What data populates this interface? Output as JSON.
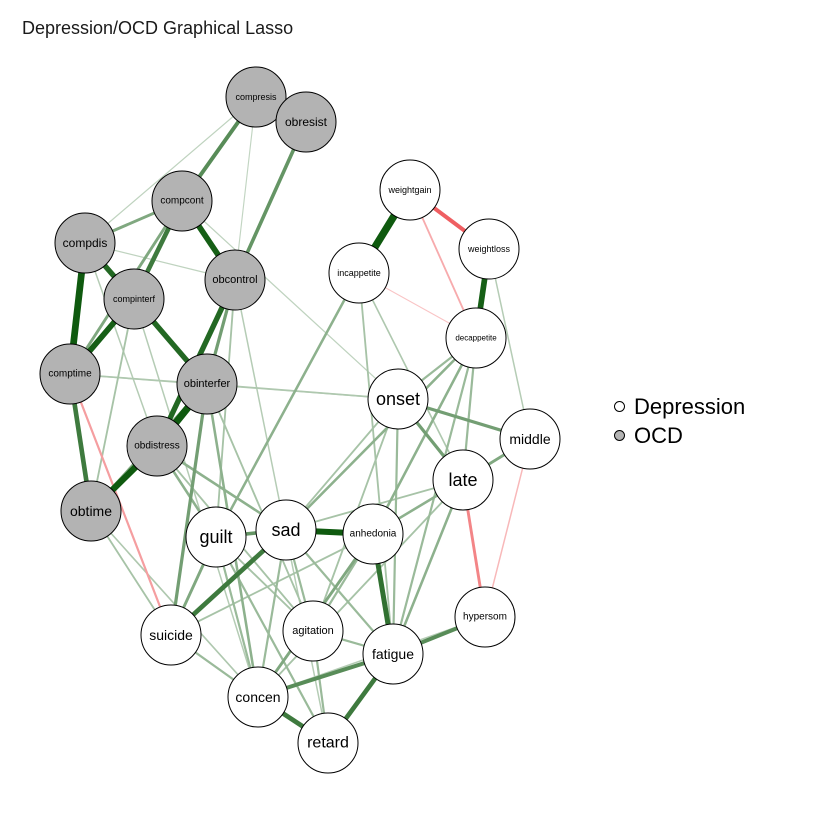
{
  "title": "Depression/OCD Graphical Lasso",
  "groups": [
    {
      "key": "depression",
      "label": "Depression",
      "fill": "#ffffff"
    },
    {
      "key": "ocd",
      "label": "OCD",
      "fill": "#b3b3b3"
    }
  ],
  "colors": {
    "positive": "#0f5a0f",
    "negative": "#e8191d",
    "node_stroke": "#000000"
  },
  "nodes": [
    {
      "id": "compresis",
      "label": "compresis",
      "group": "ocd"
    },
    {
      "id": "obresist",
      "label": "obresist",
      "group": "ocd"
    },
    {
      "id": "compcont",
      "label": "compcont",
      "group": "ocd"
    },
    {
      "id": "compdis",
      "label": "compdis",
      "group": "ocd"
    },
    {
      "id": "obcontrol",
      "label": "obcontrol",
      "group": "ocd"
    },
    {
      "id": "compinterf",
      "label": "compinterf",
      "group": "ocd"
    },
    {
      "id": "comptime",
      "label": "comptime",
      "group": "ocd"
    },
    {
      "id": "obinterfer",
      "label": "obinterfer",
      "group": "ocd"
    },
    {
      "id": "obdistress",
      "label": "obdistress",
      "group": "ocd"
    },
    {
      "id": "obtime",
      "label": "obtime",
      "group": "ocd"
    },
    {
      "id": "weightgain",
      "label": "weightgain",
      "group": "depression"
    },
    {
      "id": "weightloss",
      "label": "weightloss",
      "group": "depression"
    },
    {
      "id": "incappetite",
      "label": "incappetite",
      "group": "depression"
    },
    {
      "id": "decappetite",
      "label": "decappetite",
      "group": "depression"
    },
    {
      "id": "onset",
      "label": "onset",
      "group": "depression"
    },
    {
      "id": "middle",
      "label": "middle",
      "group": "depression"
    },
    {
      "id": "late",
      "label": "late",
      "group": "depression"
    },
    {
      "id": "guilt",
      "label": "guilt",
      "group": "depression"
    },
    {
      "id": "sad",
      "label": "sad",
      "group": "depression"
    },
    {
      "id": "anhedonia",
      "label": "anhedonia",
      "group": "depression"
    },
    {
      "id": "hypersom",
      "label": "hypersom",
      "group": "depression"
    },
    {
      "id": "suicide",
      "label": "suicide",
      "group": "depression"
    },
    {
      "id": "agitation",
      "label": "agitation",
      "group": "depression"
    },
    {
      "id": "fatigue",
      "label": "fatigue",
      "group": "depression"
    },
    {
      "id": "concen",
      "label": "concen",
      "group": "depression"
    },
    {
      "id": "retard",
      "label": "retard",
      "group": "depression"
    }
  ],
  "edges": [
    {
      "from": "weightgain",
      "to": "incappetite",
      "w": 0.95
    },
    {
      "from": "weightloss",
      "to": "decappetite",
      "w": 0.7
    },
    {
      "from": "weightgain",
      "to": "weightloss",
      "w": -0.45
    },
    {
      "from": "weightgain",
      "to": "decappetite",
      "w": -0.15
    },
    {
      "from": "incappetite",
      "to": "decappetite",
      "w": -0.05
    },
    {
      "from": "compdis",
      "to": "comptime",
      "w": 0.85
    },
    {
      "from": "comptime",
      "to": "obtime",
      "w": 0.55
    },
    {
      "from": "obdistress",
      "to": "obtime",
      "w": 0.8
    },
    {
      "from": "compcont",
      "to": "obcontrol",
      "w": 0.7
    },
    {
      "from": "compinterf",
      "to": "obinterfer",
      "w": 0.65
    },
    {
      "from": "compinterf",
      "to": "comptime",
      "w": 0.7
    },
    {
      "from": "compdis",
      "to": "compinterf",
      "w": 0.65
    },
    {
      "from": "compresis",
      "to": "compcont",
      "w": 0.45
    },
    {
      "from": "obresist",
      "to": "obcontrol",
      "w": 0.4
    },
    {
      "from": "obcontrol",
      "to": "obdistress",
      "w": 0.65
    },
    {
      "from": "obinterfer",
      "to": "obdistress",
      "w": 0.9
    },
    {
      "from": "compcont",
      "to": "compinterf",
      "w": 0.55
    },
    {
      "from": "compcont",
      "to": "compdis",
      "w": 0.3
    },
    {
      "from": "compresis",
      "to": "compdis",
      "w": 0.06
    },
    {
      "from": "compresis",
      "to": "obresist",
      "w": 0.1
    },
    {
      "from": "compcont",
      "to": "comptime",
      "w": 0.3
    },
    {
      "from": "obcontrol",
      "to": "obinterfer",
      "w": 0.35
    },
    {
      "from": "obtime",
      "to": "obinterfer",
      "w": 0.3
    },
    {
      "from": "comptime",
      "to": "obinterfer",
      "w": 0.12
    },
    {
      "from": "compdis",
      "to": "obdistress",
      "w": 0.1
    },
    {
      "from": "compresis",
      "to": "obcontrol",
      "w": 0.05
    },
    {
      "from": "compinterf",
      "to": "obtime",
      "w": 0.15
    },
    {
      "from": "comptime",
      "to": "suicide",
      "w": -0.2
    },
    {
      "from": "obtime",
      "to": "suicide",
      "w": 0.15
    },
    {
      "from": "sad",
      "to": "anhedonia",
      "w": 0.75
    },
    {
      "from": "guilt",
      "to": "sad",
      "w": 0.4
    },
    {
      "from": "sad",
      "to": "suicide",
      "w": 0.55
    },
    {
      "from": "anhedonia",
      "to": "fatigue",
      "w": 0.6
    },
    {
      "from": "fatigue",
      "to": "retard",
      "w": 0.55
    },
    {
      "from": "concen",
      "to": "retard",
      "w": 0.55
    },
    {
      "from": "fatigue",
      "to": "hypersom",
      "w": 0.45
    },
    {
      "from": "fatigue",
      "to": "concen",
      "w": 0.45
    },
    {
      "from": "onset",
      "to": "late",
      "w": 0.35
    },
    {
      "from": "onset",
      "to": "middle",
      "w": 0.35
    },
    {
      "from": "late",
      "to": "middle",
      "w": 0.3
    },
    {
      "from": "late",
      "to": "hypersom",
      "w": -0.3
    },
    {
      "from": "middle",
      "to": "hypersom",
      "w": -0.1
    },
    {
      "from": "obinterfer",
      "to": "suicide",
      "w": 0.35
    },
    {
      "from": "obdistress",
      "to": "guilt",
      "w": 0.25
    },
    {
      "from": "obdistress",
      "to": "sad",
      "w": 0.25
    },
    {
      "from": "obdistress",
      "to": "agitation",
      "w": 0.15
    },
    {
      "from": "obinterfer",
      "to": "concen",
      "w": 0.25
    },
    {
      "from": "obinterfer",
      "to": "onset",
      "w": 0.12
    },
    {
      "from": "obtime",
      "to": "concen",
      "w": 0.12
    },
    {
      "from": "comptime",
      "to": "onset",
      "w": 0.1
    },
    {
      "from": "obcontrol",
      "to": "guilt",
      "w": 0.15
    },
    {
      "from": "incappetite",
      "to": "guilt",
      "w": 0.25
    },
    {
      "from": "incappetite",
      "to": "fatigue",
      "w": 0.15
    },
    {
      "from": "incappetite",
      "to": "late",
      "w": 0.12
    },
    {
      "from": "decappetite",
      "to": "sad",
      "w": 0.25
    },
    {
      "from": "decappetite",
      "to": "anhedonia",
      "w": 0.25
    },
    {
      "from": "decappetite",
      "to": "fatigue",
      "w": 0.2
    },
    {
      "from": "decappetite",
      "to": "late",
      "w": 0.2
    },
    {
      "from": "decappetite",
      "to": "onset",
      "w": 0.2
    },
    {
      "from": "weightloss",
      "to": "middle",
      "w": 0.1
    },
    {
      "from": "onset",
      "to": "sad",
      "w": 0.15
    },
    {
      "from": "onset",
      "to": "fatigue",
      "w": 0.2
    },
    {
      "from": "onset",
      "to": "agitation",
      "w": 0.15
    },
    {
      "from": "late",
      "to": "anhedonia",
      "w": 0.25
    },
    {
      "from": "late",
      "to": "fatigue",
      "w": 0.25
    },
    {
      "from": "late",
      "to": "concen",
      "w": 0.15
    },
    {
      "from": "late",
      "to": "sad",
      "w": 0.15
    },
    {
      "from": "middle",
      "to": "anhedonia",
      "w": 0.15
    },
    {
      "from": "guilt",
      "to": "suicide",
      "w": 0.3
    },
    {
      "from": "guilt",
      "to": "concen",
      "w": 0.2
    },
    {
      "from": "guilt",
      "to": "retard",
      "w": 0.2
    },
    {
      "from": "guilt",
      "to": "agitation",
      "w": 0.15
    },
    {
      "from": "sad",
      "to": "agitation",
      "w": 0.2
    },
    {
      "from": "sad",
      "to": "concen",
      "w": 0.2
    },
    {
      "from": "sad",
      "to": "fatigue",
      "w": 0.2
    },
    {
      "from": "anhedonia",
      "to": "concen",
      "w": 0.3
    },
    {
      "from": "anhedonia",
      "to": "agitation",
      "w": 0.2
    },
    {
      "from": "anhedonia",
      "to": "suicide",
      "w": 0.15
    },
    {
      "from": "agitation",
      "to": "retard",
      "w": 0.2
    },
    {
      "from": "agitation",
      "to": "fatigue",
      "w": 0.2
    },
    {
      "from": "suicide",
      "to": "concen",
      "w": 0.2
    },
    {
      "from": "hypersom",
      "to": "concen",
      "w": 0.1
    },
    {
      "from": "obinterfer",
      "to": "agitation",
      "w": 0.15
    },
    {
      "from": "compinterf",
      "to": "concen",
      "w": 0.1
    },
    {
      "from": "compcont",
      "to": "onset",
      "w": 0.06
    },
    {
      "from": "compdis",
      "to": "obcontrol",
      "w": 0.06
    },
    {
      "from": "obcontrol",
      "to": "retard",
      "w": 0.1
    }
  ]
}
